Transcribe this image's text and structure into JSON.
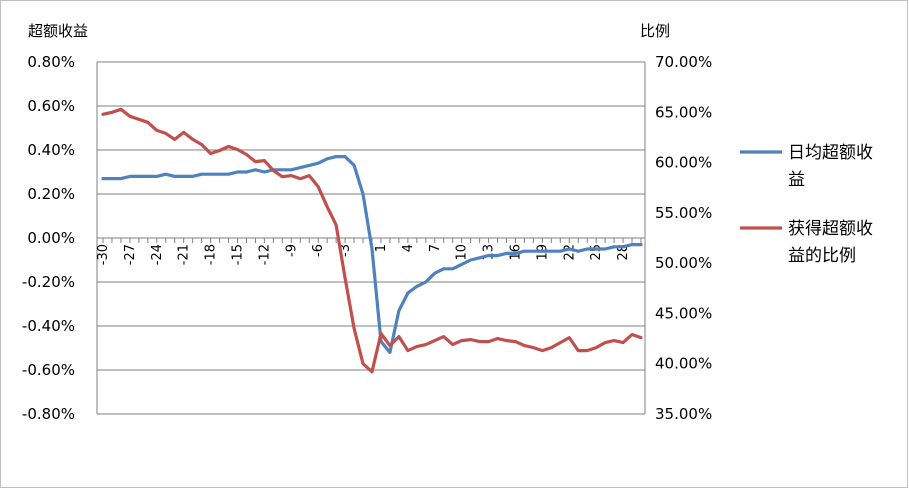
{
  "chart_data": {
    "type": "line",
    "left_axis_label": "超额收益",
    "right_axis_label": "比例",
    "left_ylim": [
      -0.8,
      0.8
    ],
    "left_ticks": [
      "0.80%",
      "0.60%",
      "0.40%",
      "0.20%",
      "0.00%",
      "-0.20%",
      "-0.40%",
      "-0.60%",
      "-0.80%"
    ],
    "right_ylim": [
      35,
      70
    ],
    "right_ticks": [
      "70.00%",
      "65.00%",
      "60.00%",
      "55.00%",
      "50.00%",
      "45.00%",
      "40.00%",
      "35.00%"
    ],
    "x": [
      -30,
      -29,
      -28,
      -27,
      -26,
      -25,
      -24,
      -23,
      -22,
      -21,
      -20,
      -19,
      -18,
      -17,
      -16,
      -15,
      -14,
      -13,
      -12,
      -11,
      -10,
      -9,
      -8,
      -7,
      -6,
      -5,
      -4,
      -3,
      -2,
      -1,
      0,
      1,
      2,
      3,
      4,
      5,
      6,
      7,
      8,
      9,
      10,
      11,
      12,
      13,
      14,
      15,
      16,
      17,
      18,
      19,
      20,
      21,
      22,
      23,
      24,
      25,
      26,
      27,
      28,
      29,
      30
    ],
    "x_tick_labels": [
      "-30",
      "-27",
      "-24",
      "-21",
      "-18",
      "-15",
      "-12",
      "-9",
      "-6",
      "-3",
      "1",
      "4",
      "7",
      "10",
      "13",
      "16",
      "19",
      "22",
      "25",
      "28"
    ],
    "grid": "horizontal",
    "legend_position": "right",
    "series": [
      {
        "name": "日均超额收益",
        "axis": "left",
        "color": "#4f81bd",
        "values": [
          0.27,
          0.27,
          0.27,
          0.28,
          0.28,
          0.28,
          0.28,
          0.29,
          0.28,
          0.28,
          0.28,
          0.29,
          0.29,
          0.29,
          0.29,
          0.3,
          0.3,
          0.31,
          0.3,
          0.31,
          0.31,
          0.31,
          0.32,
          0.33,
          0.34,
          0.36,
          0.37,
          0.37,
          0.33,
          0.2,
          -0.05,
          -0.47,
          -0.52,
          -0.33,
          -0.25,
          -0.22,
          -0.2,
          -0.16,
          -0.14,
          -0.14,
          -0.12,
          -0.1,
          -0.09,
          -0.08,
          -0.08,
          -0.07,
          -0.07,
          -0.06,
          -0.06,
          -0.06,
          -0.06,
          -0.06,
          -0.05,
          -0.06,
          -0.05,
          -0.05,
          -0.05,
          -0.04,
          -0.04,
          -0.03,
          -0.03
        ]
      },
      {
        "name": "获得超额收益的比例",
        "axis": "right",
        "color": "#c0504d",
        "values": [
          64.8,
          65.0,
          65.3,
          64.6,
          64.3,
          64.0,
          63.2,
          62.9,
          62.3,
          63.0,
          62.3,
          61.8,
          60.9,
          61.2,
          61.6,
          61.3,
          60.8,
          60.1,
          60.2,
          59.2,
          58.6,
          58.7,
          58.4,
          58.7,
          57.6,
          55.6,
          53.8,
          48.5,
          43.5,
          40.0,
          39.2,
          43.0,
          41.8,
          42.7,
          41.3,
          41.7,
          41.9,
          42.3,
          42.7,
          41.9,
          42.3,
          42.4,
          42.2,
          42.2,
          42.5,
          42.3,
          42.2,
          41.8,
          41.6,
          41.3,
          41.6,
          42.1,
          42.6,
          41.3,
          41.3,
          41.6,
          42.1,
          42.3,
          42.1,
          42.9,
          42.6
        ]
      }
    ]
  }
}
